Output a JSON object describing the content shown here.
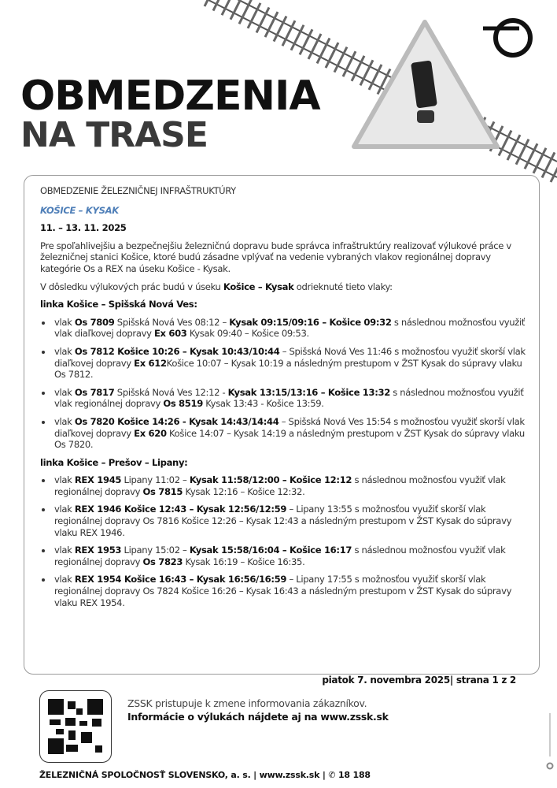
{
  "header": {
    "title_line1": "OBMEDZENIA",
    "title_line2": "NA TRASE"
  },
  "notice": {
    "section": "OBMEDZENIE ŽELEZNIČNEJ INFRAŠTRUKTÚRY",
    "route": "KOŠICE – KYSAK",
    "date": "11. – 13. 11. 2025",
    "intro": "Pre spoľahlivejšiu a bezpečnejšiu železničnú dopravu bude správca infraštruktúry realizovať výlukové práce v železničnej stanici Košice, ktoré budú zásadne vplývať na vedenie vybraných vlakov regionálnej dopravy kategórie Os a REX na úseku Košice - Kysak.",
    "consequence": [
      [
        "V dôsledku výlukových prác budú v úseku ",
        false
      ],
      [
        "Košice – Kysak",
        true
      ],
      [
        " odrieknuté tieto vlaky:",
        false
      ]
    ],
    "lines": [
      {
        "name": "linka Košice – Spišská Nová Ves:",
        "items": [
          [
            [
              "vlak ",
              false
            ],
            [
              "Os 7809",
              true
            ],
            [
              " Spišská Nová Ves 08:12 – ",
              false
            ],
            [
              "Kysak 09:15/09:16 – Košice 09:32",
              true
            ],
            [
              " s následnou možnosťou využiť vlak diaľkovej dopravy ",
              false
            ],
            [
              "Ex 603",
              true
            ],
            [
              " Kysak 09:40 – Košice 09:53.",
              false
            ]
          ],
          [
            [
              "vlak ",
              false
            ],
            [
              "Os 7812 Košice 10:26 – Kysak 10:43/10:44",
              true
            ],
            [
              " – Spišská Nová Ves 11:46 s možnosťou využiť skorší vlak diaľkovej dopravy ",
              false
            ],
            [
              "Ex 612",
              true
            ],
            [
              "Košice 10:07 – Kysak 10:19 a následným prestupom v ŽST Kysak do súpravy vlaku Os 7812.",
              false
            ]
          ],
          [
            [
              "vlak ",
              false
            ],
            [
              "Os 7817",
              true
            ],
            [
              " Spišská Nová Ves 12:12 - ",
              false
            ],
            [
              "Kysak 13:15/13:16 – Košice 13:32",
              true
            ],
            [
              " s následnou možnosťou využiť vlak regionálnej dopravy ",
              false
            ],
            [
              "Os 8519",
              true
            ],
            [
              " Kysak 13:43 - Košice 13:59.",
              false
            ]
          ],
          [
            [
              "vlak ",
              false
            ],
            [
              "Os 7820 Košice 14:26 - Kysak 14:43/14:44",
              true
            ],
            [
              " – Spišská Nová Ves 15:54 s možnosťou využiť skorší vlak diaľkovej dopravy ",
              false
            ],
            [
              "Ex 620",
              true
            ],
            [
              " Košice 14:07 – Kysak 14:19 a následným prestupom v ŽST Kysak do súpravy vlaku Os 7820.",
              false
            ]
          ]
        ]
      },
      {
        "name": "linka Košice – Prešov – Lipany:",
        "items": [
          [
            [
              "vlak ",
              false
            ],
            [
              "REX 1945",
              true
            ],
            [
              " Lipany 11:02 – ",
              false
            ],
            [
              "Kysak 11:58/12:00 – Košice 12:12",
              true
            ],
            [
              " s následnou možnosťou využiť vlak regionálnej dopravy ",
              false
            ],
            [
              "Os 7815",
              true
            ],
            [
              " Kysak 12:16 – Košice 12:32.",
              false
            ]
          ],
          [
            [
              "vlak ",
              false
            ],
            [
              "REX 1946 Košice 12:43 – Kysak 12:56/12:59",
              true
            ],
            [
              " – Lipany 13:55 s možnosťou využiť skorší vlak regionálnej dopravy Os 7816 Košice 12:26 – Kysak 12:43 a následným prestupom v ŽST Kysak do súpravy vlaku REX 1946.",
              false
            ]
          ],
          [
            [
              "vlak ",
              false
            ],
            [
              "REX 1953",
              true
            ],
            [
              " Lipany 15:02 – ",
              false
            ],
            [
              "Kysak 15:58/16:04 – Košice 16:17",
              true
            ],
            [
              " s následnou možnosťou využiť vlak regionálnej dopravy ",
              false
            ],
            [
              "Os 7823",
              true
            ],
            [
              " Kysak 16:19 – Košice 16:35.",
              false
            ]
          ],
          [
            [
              "vlak ",
              false
            ],
            [
              "REX 1954 Košice 16:43 – Kysak 16:56/16:59",
              true
            ],
            [
              " – Lipany 17:55 s možnosťou využiť skorší vlak regionálnej dopravy Os 7824 Košice 16:26 – Kysak 16:43 a následným prestupom v ŽST Kysak do súpravy vlaku REX 1954.",
              false
            ]
          ]
        ]
      }
    ]
  },
  "page_info": "piatok 7. novembra 2025| strana 1 z 2",
  "info": {
    "line1": "ZSSK pristupuje k zmene informovania zákazníkov.",
    "line2": "Informácie o výlukách nájdete aj na www.zssk.sk"
  },
  "footer": "ŽELEZNIČNÁ SPOLOČNOSŤ SLOVENSKO, a. s. | www.zssk.sk | ✆ 18 188",
  "icons": {
    "logo": "zssk-logo",
    "warning": "warning-triangle-icon",
    "track": "railway-track",
    "qr": "qr-code"
  },
  "colors": {
    "route": "#4f7fb8",
    "text": "#333333",
    "border": "#9a9a9a"
  }
}
